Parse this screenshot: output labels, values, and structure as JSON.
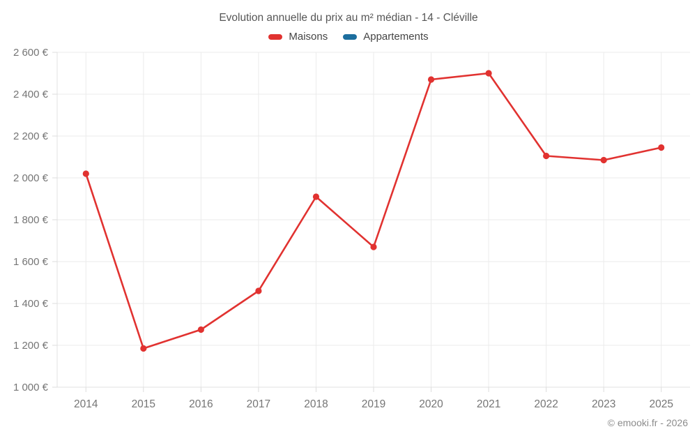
{
  "header": {
    "title": "Evolution annuelle du prix au m² médian - 14 - Cléville"
  },
  "legend": {
    "items": [
      {
        "label": "Maisons",
        "color": "#e13230"
      },
      {
        "label": "Appartements",
        "color": "#1c6e9e"
      }
    ]
  },
  "footer": {
    "credit": "© emooki.fr - 2026"
  },
  "colors": {
    "grid": "#ebebeb",
    "axis_line": "#e0e0e0",
    "tick": "#dcdcdc",
    "axis_text": "#757575",
    "title_text": "#565656"
  },
  "chart_data": {
    "type": "line",
    "title": "Evolution annuelle du prix au m² médian - 14 - Cléville",
    "xlabel": "",
    "ylabel": "",
    "categories": [
      "2014",
      "2015",
      "2016",
      "2017",
      "2018",
      "2019",
      "2020",
      "2021",
      "2022",
      "2023",
      "2025"
    ],
    "series": [
      {
        "name": "Maisons",
        "color": "#e13230",
        "values": [
          2020,
          1185,
          1275,
          1460,
          1910,
          1670,
          2470,
          2500,
          2105,
          2085,
          2145
        ]
      },
      {
        "name": "Appartements",
        "color": "#1c6e9e",
        "values": []
      }
    ],
    "ylim": [
      1000,
      2600
    ],
    "y_ticks": [
      {
        "value": 1000,
        "label": "1 000 €"
      },
      {
        "value": 1200,
        "label": "1 200 €"
      },
      {
        "value": 1400,
        "label": "1 400 €"
      },
      {
        "value": 1600,
        "label": "1 600 €"
      },
      {
        "value": 1800,
        "label": "1 800 €"
      },
      {
        "value": 2000,
        "label": "2 000 €"
      },
      {
        "value": 2200,
        "label": "2 200 €"
      },
      {
        "value": 2400,
        "label": "2 400 €"
      },
      {
        "value": 2600,
        "label": "2 600 €"
      }
    ],
    "grid": true,
    "legend_position": "top"
  }
}
